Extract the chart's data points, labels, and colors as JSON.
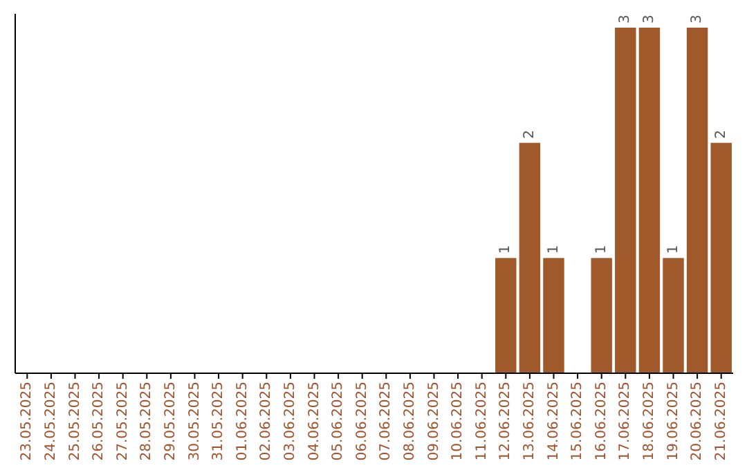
{
  "chart_data": {
    "type": "bar",
    "categories": [
      "23.05.2025",
      "24.05.2025",
      "25.05.2025",
      "26.05.2025",
      "27.05.2025",
      "28.05.2025",
      "29.05.2025",
      "30.05.2025",
      "31.05.2025",
      "01.06.2025",
      "02.06.2025",
      "03.06.2025",
      "04.06.2025",
      "05.06.2025",
      "06.06.2025",
      "07.06.2025",
      "08.06.2025",
      "09.06.2025",
      "10.06.2025",
      "11.06.2025",
      "12.06.2025",
      "13.06.2025",
      "14.06.2025",
      "15.06.2025",
      "16.06.2025",
      "17.06.2025",
      "18.06.2025",
      "19.06.2025",
      "20.06.2025",
      "21.06.2025"
    ],
    "values": [
      null,
      null,
      null,
      null,
      null,
      null,
      null,
      null,
      null,
      null,
      null,
      null,
      null,
      null,
      null,
      null,
      null,
      null,
      null,
      null,
      1,
      2,
      1,
      null,
      1,
      3,
      3,
      1,
      3,
      2
    ],
    "value_labels": [
      null,
      null,
      null,
      null,
      null,
      null,
      null,
      null,
      null,
      null,
      null,
      null,
      null,
      null,
      null,
      null,
      null,
      null,
      null,
      null,
      "1",
      "2",
      "1",
      null,
      "1",
      "3",
      "3",
      "1",
      "3",
      "2"
    ],
    "color": "#a0592a",
    "grid": false
  }
}
